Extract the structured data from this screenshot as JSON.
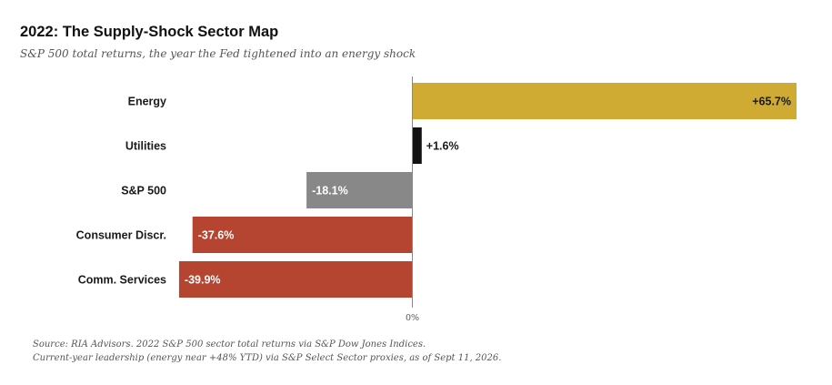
{
  "header": {
    "title": "2022: The Supply-Shock Sector Map",
    "subtitle": "S&P 500 total returns, the year the Fed tightened into an energy shock"
  },
  "source": {
    "line1": "Source: RIA Advisors. 2022 S&P 500 sector total returns via S&P Dow Jones Indices.",
    "line2": "Current-year leadership (energy near +48% YTD) via S&P Select Sector proxies, as of Sept 11, 2026."
  },
  "chart_data": {
    "type": "bar",
    "orientation": "horizontal",
    "title": "2022: The Supply-Shock Sector Map",
    "subtitle": "S&P 500 total returns, the year the Fed tightened into an energy shock",
    "categories": [
      "Energy",
      "Utilities",
      "S&P 500",
      "Consumer Discr.",
      "Comm. Services"
    ],
    "values": [
      65.7,
      1.6,
      -18.1,
      -37.6,
      -39.9
    ],
    "value_labels": [
      "+65.7%",
      "+1.6%",
      "-18.1%",
      "-37.6%",
      "-39.9%"
    ],
    "colors": [
      "#cfab33",
      "#121212",
      "#888888",
      "#b54531",
      "#b54531"
    ],
    "x_tick_label": "0%",
    "xlim": [
      -40.0,
      65.7
    ],
    "grid": false,
    "legend": "none"
  }
}
